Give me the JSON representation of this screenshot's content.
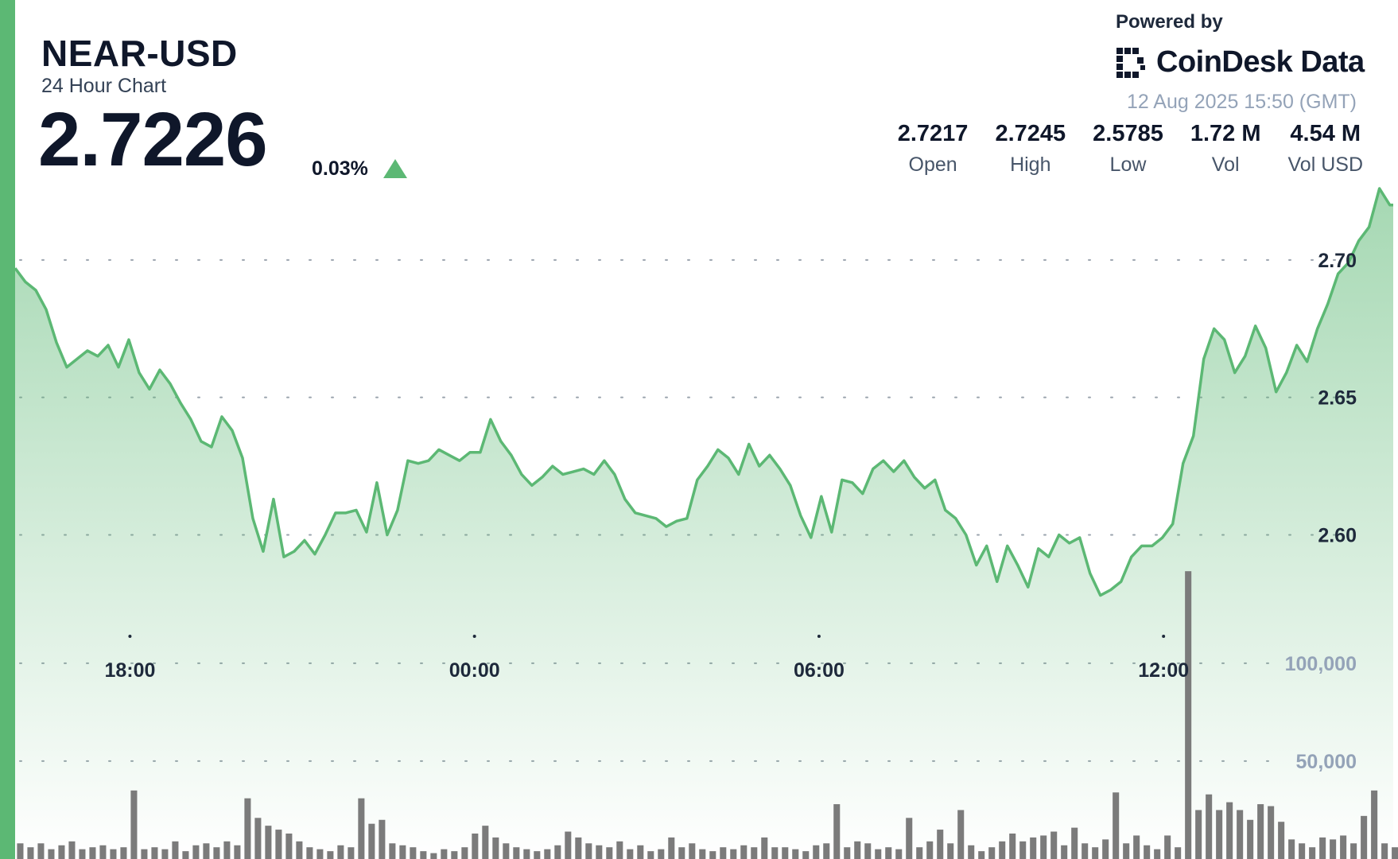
{
  "header": {
    "symbol": "NEAR-USD",
    "subtitle": "24 Hour Chart",
    "price": "2.7226",
    "change": "0.03%",
    "change_direction": "up"
  },
  "branding": {
    "powered_by": "Powered by",
    "brand": "CoinDesk Data",
    "logo_icon": "coindesk-logo-icon"
  },
  "timestamp": "12 Aug 2025 15:50 (GMT)",
  "stats": [
    {
      "value": "2.7217",
      "label": "Open"
    },
    {
      "value": "2.7245",
      "label": "High"
    },
    {
      "value": "2.5785",
      "label": "Low"
    },
    {
      "value": "1.72 M",
      "label": "Vol"
    },
    {
      "value": "4.54 M",
      "label": "Vol USD"
    }
  ],
  "colors": {
    "accent": "#5cb874",
    "line": "#5cb874",
    "bar": "#7b7b7b",
    "text": "#0f172a",
    "muted": "#94a3b8"
  },
  "chart_data": {
    "type": "line",
    "title": "NEAR-USD",
    "subtitle": "24 Hour Chart",
    "x_ticks": [
      "18:00",
      "00:00",
      "06:00",
      "12:00"
    ],
    "x_tick_hours": [
      2.0,
      8.0,
      14.0,
      20.0
    ],
    "xlim": [
      0,
      24
    ],
    "price_ticks": [
      2.6,
      2.65,
      2.7
    ],
    "price_tick_labels": [
      "2.60",
      "2.65",
      "2.70"
    ],
    "ylim": [
      2.577,
      2.726
    ],
    "volume_ticks": [
      50000,
      100000
    ],
    "volume_tick_labels": [
      "50,000",
      "100,000"
    ],
    "volume_lim": [
      0,
      130000
    ],
    "grid": true,
    "series": [
      {
        "kind": "price",
        "x": [
          0.0,
          0.18,
          0.36,
          0.54,
          0.72,
          0.9,
          1.08,
          1.26,
          1.44,
          1.62,
          1.8,
          1.98,
          2.16,
          2.34,
          2.52,
          2.7,
          2.88,
          3.06,
          3.24,
          3.42,
          3.6,
          3.78,
          3.96,
          4.14,
          4.32,
          4.5,
          4.68,
          4.86,
          5.04,
          5.22,
          5.4,
          5.58,
          5.76,
          5.94,
          6.12,
          6.3,
          6.48,
          6.66,
          6.84,
          7.02,
          7.2,
          7.38,
          7.56,
          7.74,
          7.92,
          8.1,
          8.28,
          8.46,
          8.64,
          8.82,
          9.0,
          9.18,
          9.36,
          9.54,
          9.72,
          9.9,
          10.08,
          10.26,
          10.44,
          10.62,
          10.8,
          10.98,
          11.16,
          11.34,
          11.52,
          11.7,
          11.88,
          12.06,
          12.24,
          12.42,
          12.6,
          12.78,
          12.96,
          13.14,
          13.32,
          13.5,
          13.68,
          13.86,
          14.04,
          14.22,
          14.4,
          14.58,
          14.76,
          14.94,
          15.12,
          15.3,
          15.48,
          15.66,
          15.84,
          16.02,
          16.2,
          16.38,
          16.56,
          16.74,
          16.92,
          17.1,
          17.28,
          17.46,
          17.64,
          17.82,
          18.0,
          18.18,
          18.36,
          18.54,
          18.72,
          18.9,
          19.08,
          19.26,
          19.44,
          19.62,
          19.8,
          19.98,
          20.16,
          20.34,
          20.52,
          20.7,
          20.88,
          21.06,
          21.24,
          21.42,
          21.6,
          21.78,
          21.96,
          22.14,
          22.32,
          22.5,
          22.68,
          22.86,
          23.04,
          23.22,
          23.4,
          23.58,
          23.76,
          23.94
        ],
        "values": [
          2.697,
          2.692,
          2.689,
          2.682,
          2.67,
          2.661,
          2.664,
          2.667,
          2.665,
          2.669,
          2.661,
          2.671,
          2.659,
          2.653,
          2.66,
          2.655,
          2.648,
          2.642,
          2.634,
          2.632,
          2.643,
          2.638,
          2.628,
          2.606,
          2.594,
          2.613,
          2.592,
          2.594,
          2.598,
          2.593,
          2.6,
          2.608,
          2.608,
          2.609,
          2.601,
          2.619,
          2.6,
          2.609,
          2.627,
          2.626,
          2.627,
          2.631,
          2.629,
          2.627,
          2.63,
          2.63,
          2.642,
          2.634,
          2.629,
          2.622,
          2.618,
          2.621,
          2.625,
          2.622,
          2.623,
          2.624,
          2.622,
          2.627,
          2.622,
          2.613,
          2.608,
          2.607,
          2.606,
          2.603,
          2.605,
          2.606,
          2.62,
          2.625,
          2.631,
          2.628,
          2.622,
          2.633,
          2.625,
          2.629,
          2.624,
          2.618,
          2.607,
          2.599,
          2.614,
          2.601,
          2.62,
          2.619,
          2.615,
          2.624,
          2.627,
          2.623,
          2.627,
          2.621,
          2.617,
          2.62,
          2.609,
          2.606,
          2.6,
          2.589,
          2.596,
          2.583,
          2.596,
          2.589,
          2.581,
          2.595,
          2.592,
          2.6,
          2.597,
          2.599,
          2.586,
          2.578,
          2.58,
          2.583,
          2.592,
          2.596,
          2.596,
          2.599,
          2.604,
          2.626,
          2.636,
          2.664,
          2.675,
          2.671,
          2.659,
          2.665,
          2.676,
          2.668,
          2.652,
          2.659,
          2.669,
          2.663,
          2.675,
          2.684,
          2.695,
          2.699,
          2.707,
          2.712,
          2.726,
          2.72
        ]
      },
      {
        "kind": "volume",
        "x": [
          0.0,
          0.18,
          0.36,
          0.54,
          0.72,
          0.9,
          1.08,
          1.26,
          1.44,
          1.62,
          1.8,
          1.98,
          2.16,
          2.34,
          2.52,
          2.7,
          2.88,
          3.06,
          3.24,
          3.42,
          3.6,
          3.78,
          3.96,
          4.14,
          4.32,
          4.5,
          4.68,
          4.86,
          5.04,
          5.22,
          5.4,
          5.58,
          5.76,
          5.94,
          6.12,
          6.3,
          6.48,
          6.66,
          6.84,
          7.02,
          7.2,
          7.38,
          7.56,
          7.74,
          7.92,
          8.1,
          8.28,
          8.46,
          8.64,
          8.82,
          9.0,
          9.18,
          9.36,
          9.54,
          9.72,
          9.9,
          10.08,
          10.26,
          10.44,
          10.62,
          10.8,
          10.98,
          11.16,
          11.34,
          11.52,
          11.7,
          11.88,
          12.06,
          12.24,
          12.42,
          12.6,
          12.78,
          12.96,
          13.14,
          13.32,
          13.5,
          13.68,
          13.86,
          14.04,
          14.22,
          14.4,
          14.58,
          14.76,
          14.94,
          15.12,
          15.3,
          15.48,
          15.66,
          15.84,
          16.02,
          16.2,
          16.38,
          16.56,
          16.74,
          16.92,
          17.1,
          17.28,
          17.46,
          17.64,
          17.82,
          18.0,
          18.18,
          18.36,
          18.54,
          18.72,
          18.9,
          19.08,
          19.26,
          19.44,
          19.62,
          19.8,
          19.98,
          20.16,
          20.34,
          20.52,
          20.7,
          20.88,
          21.06,
          21.24,
          21.42,
          21.6,
          21.78,
          21.96,
          22.14,
          22.32,
          22.5,
          22.68,
          22.86,
          23.04,
          23.22,
          23.4,
          23.58,
          23.76,
          23.94
        ],
        "values": [
          8000,
          6000,
          8000,
          5000,
          7000,
          9000,
          5000,
          6000,
          7000,
          5000,
          6000,
          35000,
          5000,
          6000,
          5000,
          9000,
          4000,
          7000,
          8000,
          6000,
          9000,
          7000,
          31000,
          21000,
          17000,
          15000,
          13000,
          9000,
          6000,
          5000,
          4000,
          7000,
          6000,
          31000,
          18000,
          20000,
          8000,
          7000,
          6000,
          4000,
          3000,
          5000,
          4000,
          6000,
          13000,
          17000,
          11000,
          8000,
          6000,
          5000,
          4000,
          5000,
          7000,
          14000,
          11000,
          8000,
          7000,
          6000,
          9000,
          5000,
          7000,
          4000,
          5000,
          11000,
          6000,
          8000,
          5000,
          4000,
          6000,
          5000,
          7000,
          6000,
          11000,
          6000,
          6000,
          5000,
          4000,
          7000,
          8000,
          28000,
          6000,
          9000,
          8000,
          5000,
          6000,
          5000,
          21000,
          6000,
          9000,
          15000,
          8000,
          25000,
          7000,
          4000,
          6000,
          9000,
          13000,
          9000,
          11000,
          12000,
          14000,
          7000,
          16000,
          8000,
          6000,
          10000,
          34000,
          8000,
          12000,
          7000,
          5000,
          12000,
          6000,
          147000,
          25000,
          33000,
          25000,
          29000,
          25000,
          20000,
          28000,
          27000,
          19000,
          10000,
          8000,
          6000,
          11000,
          10000,
          12000,
          8000,
          22000,
          35000,
          8000,
          6000
        ]
      }
    ]
  }
}
